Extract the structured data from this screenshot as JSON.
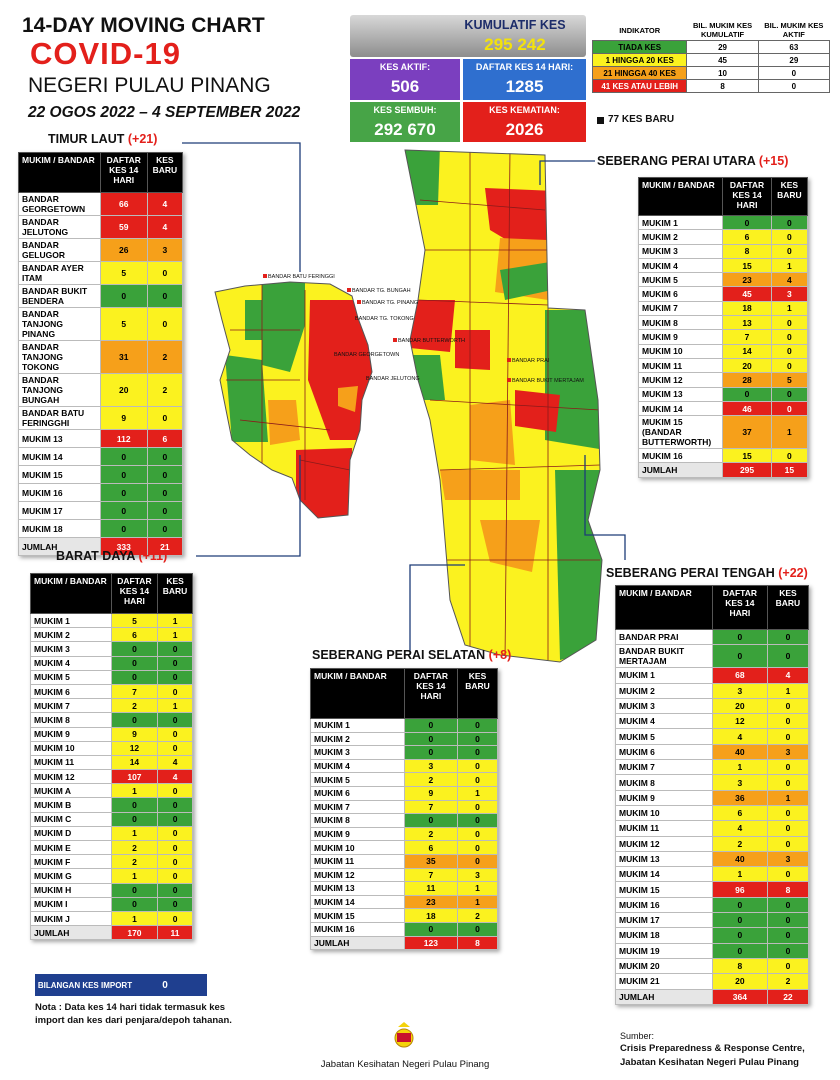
{
  "header": {
    "line1": "14-DAY MOVING CHART",
    "line2": "COVID-19",
    "line3": "NEGERI PULAU PINANG",
    "dates": "22 OGOS 2022 – 4 SEPTEMBER 2022"
  },
  "summary": {
    "cumulative": {
      "label": "KUMULATIF KES",
      "value": "295 242"
    },
    "active": {
      "label": "KES AKTIF:",
      "value": "506"
    },
    "registered_14d": {
      "label": "DAFTAR KES 14 HARI:",
      "value": "1285"
    },
    "recovered": {
      "label": "KES SEMBUH:",
      "value": "292 670"
    },
    "deaths": {
      "label": "KES KEMATIAN:",
      "value": "2026"
    }
  },
  "legend": {
    "headers": [
      "INDIKATOR",
      "BIL. MUKIM KES KUMULATIF",
      "BIL. MUKIM KES AKTIF"
    ],
    "rows": [
      [
        "TIADA KES",
        29,
        63,
        "#3aa23a"
      ],
      [
        "1 HINGGA 20 KES",
        45,
        29,
        "#fbf21f"
      ],
      [
        "21 HINGGA 40 KES",
        10,
        0,
        "#f6a01a"
      ],
      [
        "41 KES ATAU LEBIH",
        8,
        0,
        "#e3201b"
      ]
    ],
    "new_cases_note": "77 KES BARU"
  },
  "tables": [
    {
      "title": "TIMUR LAUT",
      "change": "(+21)",
      "headers": [
        "MUKIM / BANDAR",
        "DAFTAR KES 14 HARI",
        "KES BARU"
      ],
      "rows": [
        [
          "BANDAR GEORGETOWN",
          66,
          4,
          "#e3201b"
        ],
        [
          "BANDAR JELUTONG",
          59,
          4,
          "#e3201b"
        ],
        [
          "BANDAR GELUGOR",
          26,
          3,
          "#f6a01a"
        ],
        [
          "BANDAR AYER ITAM",
          5,
          0,
          "#fbf21f"
        ],
        [
          "BANDAR BUKIT BENDERA",
          0,
          0,
          "#3aa23a"
        ],
        [
          "BANDAR TANJONG PINANG",
          5,
          0,
          "#fbf21f"
        ],
        [
          "BANDAR TANJONG TOKONG",
          31,
          2,
          "#f6a01a"
        ],
        [
          "BANDAR TANJONG BUNGAH",
          20,
          2,
          "#fbf21f"
        ],
        [
          "BANDAR BATU FERINGGHI",
          9,
          0,
          "#fbf21f"
        ],
        [
          "MUKIM 13",
          112,
          6,
          "#e3201b"
        ],
        [
          "MUKIM 14",
          0,
          0,
          "#3aa23a"
        ],
        [
          "MUKIM 15",
          0,
          0,
          "#3aa23a"
        ],
        [
          "MUKIM 16",
          0,
          0,
          "#3aa23a"
        ],
        [
          "MUKIM 17",
          0,
          0,
          "#3aa23a"
        ],
        [
          "MUKIM 18",
          0,
          0,
          "#3aa23a"
        ]
      ],
      "total": [
        "JUMLAH",
        333,
        21,
        "#e3201b"
      ]
    },
    {
      "title": "SEBERANG PERAI UTARA",
      "change": "(+15)",
      "headers": [
        "MUKIM / BANDAR",
        "DAFTAR KES 14 HARI",
        "KES BARU"
      ],
      "rows": [
        [
          "MUKIM 1",
          0,
          0,
          "#3aa23a"
        ],
        [
          "MUKIM 2",
          6,
          0,
          "#fbf21f"
        ],
        [
          "MUKIM 3",
          8,
          0,
          "#fbf21f"
        ],
        [
          "MUKIM 4",
          15,
          1,
          "#fbf21f"
        ],
        [
          "MUKIM 5",
          23,
          4,
          "#f6a01a"
        ],
        [
          "MUKIM 6",
          45,
          3,
          "#e3201b"
        ],
        [
          "MUKIM 7",
          18,
          1,
          "#fbf21f"
        ],
        [
          "MUKIM 8",
          13,
          0,
          "#fbf21f"
        ],
        [
          "MUKIM 9",
          7,
          0,
          "#fbf21f"
        ],
        [
          "MUKIM 10",
          14,
          0,
          "#fbf21f"
        ],
        [
          "MUKIM 11",
          20,
          0,
          "#fbf21f"
        ],
        [
          "MUKIM 12",
          28,
          5,
          "#f6a01a"
        ],
        [
          "MUKIM 13",
          0,
          0,
          "#3aa23a"
        ],
        [
          "MUKIM 14",
          46,
          0,
          "#e3201b"
        ],
        [
          "MUKIM 15 (BANDAR BUTTERWORTH)",
          37,
          1,
          "#f6a01a"
        ],
        [
          "MUKIM 16",
          15,
          0,
          "#fbf21f"
        ]
      ],
      "total": [
        "JUMLAH",
        295,
        15,
        "#e3201b"
      ]
    },
    {
      "title": "BARAT DAYA",
      "change": "(+11)",
      "headers": [
        "MUKIM / BANDAR",
        "DAFTAR KES 14 HARI",
        "KES BARU"
      ],
      "rows": [
        [
          "MUKIM 1",
          5,
          1,
          "#fbf21f"
        ],
        [
          "MUKIM 2",
          6,
          1,
          "#fbf21f"
        ],
        [
          "MUKIM 3",
          0,
          0,
          "#3aa23a"
        ],
        [
          "MUKIM 4",
          0,
          0,
          "#3aa23a"
        ],
        [
          "MUKIM 5",
          0,
          0,
          "#3aa23a"
        ],
        [
          "MUKIM 6",
          7,
          0,
          "#fbf21f"
        ],
        [
          "MUKIM 7",
          2,
          1,
          "#fbf21f"
        ],
        [
          "MUKIM 8",
          0,
          0,
          "#3aa23a"
        ],
        [
          "MUKIM 9",
          9,
          0,
          "#fbf21f"
        ],
        [
          "MUKIM 10",
          12,
          0,
          "#fbf21f"
        ],
        [
          "MUKIM 11",
          14,
          4,
          "#fbf21f"
        ],
        [
          "MUKIM 12",
          107,
          4,
          "#e3201b"
        ],
        [
          "MUKIM A",
          1,
          0,
          "#fbf21f"
        ],
        [
          "MUKIM B",
          0,
          0,
          "#3aa23a"
        ],
        [
          "MUKIM C",
          0,
          0,
          "#3aa23a"
        ],
        [
          "MUKIM D",
          1,
          0,
          "#fbf21f"
        ],
        [
          "MUKIM E",
          2,
          0,
          "#fbf21f"
        ],
        [
          "MUKIM F",
          2,
          0,
          "#fbf21f"
        ],
        [
          "MUKIM G",
          1,
          0,
          "#fbf21f"
        ],
        [
          "MUKIM H",
          0,
          0,
          "#3aa23a"
        ],
        [
          "MUKIM I",
          0,
          0,
          "#3aa23a"
        ],
        [
          "MUKIM J",
          1,
          0,
          "#fbf21f"
        ]
      ],
      "total": [
        "JUMLAH",
        170,
        11,
        "#e3201b"
      ]
    },
    {
      "title": "SEBERANG PERAI SELATAN",
      "change": "(+8)",
      "headers": [
        "MUKIM / BANDAR",
        "DAFTAR KES 14 HARI",
        "KES BARU"
      ],
      "rows": [
        [
          "MUKIM 1",
          0,
          0,
          "#3aa23a"
        ],
        [
          "MUKIM 2",
          0,
          0,
          "#3aa23a"
        ],
        [
          "MUKIM 3",
          0,
          0,
          "#3aa23a"
        ],
        [
          "MUKIM 4",
          3,
          0,
          "#fbf21f"
        ],
        [
          "MUKIM 5",
          2,
          0,
          "#fbf21f"
        ],
        [
          "MUKIM 6",
          9,
          1,
          "#fbf21f"
        ],
        [
          "MUKIM 7",
          7,
          0,
          "#fbf21f"
        ],
        [
          "MUKIM 8",
          0,
          0,
          "#3aa23a"
        ],
        [
          "MUKIM 9",
          2,
          0,
          "#fbf21f"
        ],
        [
          "MUKIM 10",
          6,
          0,
          "#fbf21f"
        ],
        [
          "MUKIM 11",
          35,
          0,
          "#f6a01a"
        ],
        [
          "MUKIM 12",
          7,
          3,
          "#fbf21f"
        ],
        [
          "MUKIM 13",
          11,
          1,
          "#fbf21f"
        ],
        [
          "MUKIM 14",
          23,
          1,
          "#f6a01a"
        ],
        [
          "MUKIM 15",
          18,
          2,
          "#fbf21f"
        ],
        [
          "MUKIM 16",
          0,
          0,
          "#3aa23a"
        ]
      ],
      "total": [
        "JUMLAH",
        123,
        8,
        "#e3201b"
      ]
    },
    {
      "title": "SEBERANG PERAI TENGAH",
      "change": "(+22)",
      "headers": [
        "MUKIM / BANDAR",
        "DAFTAR KES 14 HARI",
        "KES BARU"
      ],
      "rows": [
        [
          "BANDAR PRAI",
          0,
          0,
          "#3aa23a"
        ],
        [
          "BANDAR BUKIT MERTAJAM",
          0,
          0,
          "#3aa23a"
        ],
        [
          "MUKIM 1",
          68,
          4,
          "#e3201b"
        ],
        [
          "MUKIM 2",
          3,
          1,
          "#fbf21f"
        ],
        [
          "MUKIM 3",
          20,
          0,
          "#fbf21f"
        ],
        [
          "MUKIM 4",
          12,
          0,
          "#fbf21f"
        ],
        [
          "MUKIM 5",
          4,
          0,
          "#fbf21f"
        ],
        [
          "MUKIM 6",
          40,
          3,
          "#f6a01a"
        ],
        [
          "MUKIM 7",
          1,
          0,
          "#fbf21f"
        ],
        [
          "MUKIM 8",
          3,
          0,
          "#fbf21f"
        ],
        [
          "MUKIM 9",
          36,
          1,
          "#f6a01a"
        ],
        [
          "MUKIM 10",
          6,
          0,
          "#fbf21f"
        ],
        [
          "MUKIM 11",
          4,
          0,
          "#fbf21f"
        ],
        [
          "MUKIM 12",
          2,
          0,
          "#fbf21f"
        ],
        [
          "MUKIM 13",
          40,
          3,
          "#f6a01a"
        ],
        [
          "MUKIM 14",
          1,
          0,
          "#fbf21f"
        ],
        [
          "MUKIM 15",
          96,
          8,
          "#e3201b"
        ],
        [
          "MUKIM 16",
          0,
          0,
          "#3aa23a"
        ],
        [
          "MUKIM 17",
          0,
          0,
          "#3aa23a"
        ],
        [
          "MUKIM 18",
          0,
          0,
          "#3aa23a"
        ],
        [
          "MUKIM 19",
          0,
          0,
          "#3aa23a"
        ],
        [
          "MUKIM 20",
          8,
          0,
          "#fbf21f"
        ],
        [
          "MUKIM 21",
          20,
          2,
          "#fbf21f"
        ]
      ],
      "total": [
        "JUMLAH",
        364,
        22,
        "#e3201b"
      ]
    }
  ],
  "map": {
    "labels": [
      "BANDAR BATU FERINGGI",
      "BANDAR TG. BUNGAH",
      "BANDAR TG. PINANG",
      "BANDAR TG. TOKONG",
      "BANDAR GEORGETOWN",
      "BANDAR JELUTONG",
      "BANDAR BUTTERWORTH",
      "BANDAR PRAI",
      "BANDAR BUKIT MERTAJAM"
    ]
  },
  "footer": {
    "import_label": "BILANGAN KES IMPORT",
    "import_value": "0",
    "note": "Nota : Data kes 14 hari tidak termasuk kes import dan kes dari penjara/depoh tahanan.",
    "department": "Jabatan Kesihatan Negeri Pulau Pinang",
    "source_label": "Sumber:",
    "source_line1": "Crisis Preparedness & Response Centre,",
    "source_line2": "Jabatan Kesihatan Negeri Pulau Pinang"
  }
}
